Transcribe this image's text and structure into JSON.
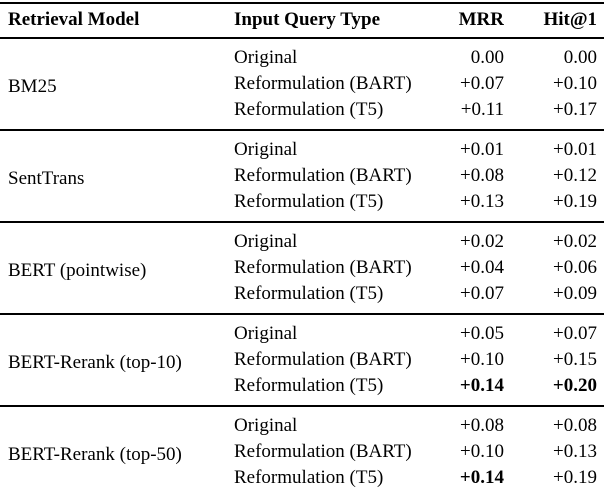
{
  "colors": {
    "text": "#000000",
    "background": "#ffffff",
    "rule": "#000000"
  },
  "table": {
    "headers": [
      "Retrieval Model",
      "Input Query Type",
      "MRR",
      "Hit@1"
    ],
    "groups": [
      {
        "model": "BM25",
        "rows": [
          {
            "query_type": "Original",
            "mrr": "0.00",
            "hit1": "0.00"
          },
          {
            "query_type": "Reformulation (BART)",
            "mrr": "+0.07",
            "hit1": "+0.10"
          },
          {
            "query_type": "Reformulation (T5)",
            "mrr": "+0.11",
            "hit1": "+0.17"
          }
        ]
      },
      {
        "model": "SentTrans",
        "rows": [
          {
            "query_type": "Original",
            "mrr": "+0.01",
            "hit1": "+0.01"
          },
          {
            "query_type": "Reformulation (BART)",
            "mrr": "+0.08",
            "hit1": "+0.12"
          },
          {
            "query_type": "Reformulation (T5)",
            "mrr": "+0.13",
            "hit1": "+0.19"
          }
        ]
      },
      {
        "model": "BERT (pointwise)",
        "rows": [
          {
            "query_type": "Original",
            "mrr": "+0.02",
            "hit1": "+0.02"
          },
          {
            "query_type": "Reformulation (BART)",
            "mrr": "+0.04",
            "hit1": "+0.06"
          },
          {
            "query_type": "Reformulation (T5)",
            "mrr": "+0.07",
            "hit1": "+0.09"
          }
        ]
      },
      {
        "model": "BERT-Rerank (top-10)",
        "rows": [
          {
            "query_type": "Original",
            "mrr": "+0.05",
            "hit1": "+0.07"
          },
          {
            "query_type": "Reformulation (BART)",
            "mrr": "+0.10",
            "hit1": "+0.15"
          },
          {
            "query_type": "Reformulation (T5)",
            "mrr": "+0.14",
            "hit1": "+0.20",
            "mrr_bold": true,
            "hit1_bold": true
          }
        ]
      },
      {
        "model": "BERT-Rerank (top-50)",
        "rows": [
          {
            "query_type": "Original",
            "mrr": "+0.08",
            "hit1": "+0.08"
          },
          {
            "query_type": "Reformulation (BART)",
            "mrr": "+0.10",
            "hit1": "+0.13"
          },
          {
            "query_type": "Reformulation (T5)",
            "mrr": "+0.14",
            "hit1": "+0.19",
            "mrr_bold": true
          }
        ]
      }
    ]
  }
}
